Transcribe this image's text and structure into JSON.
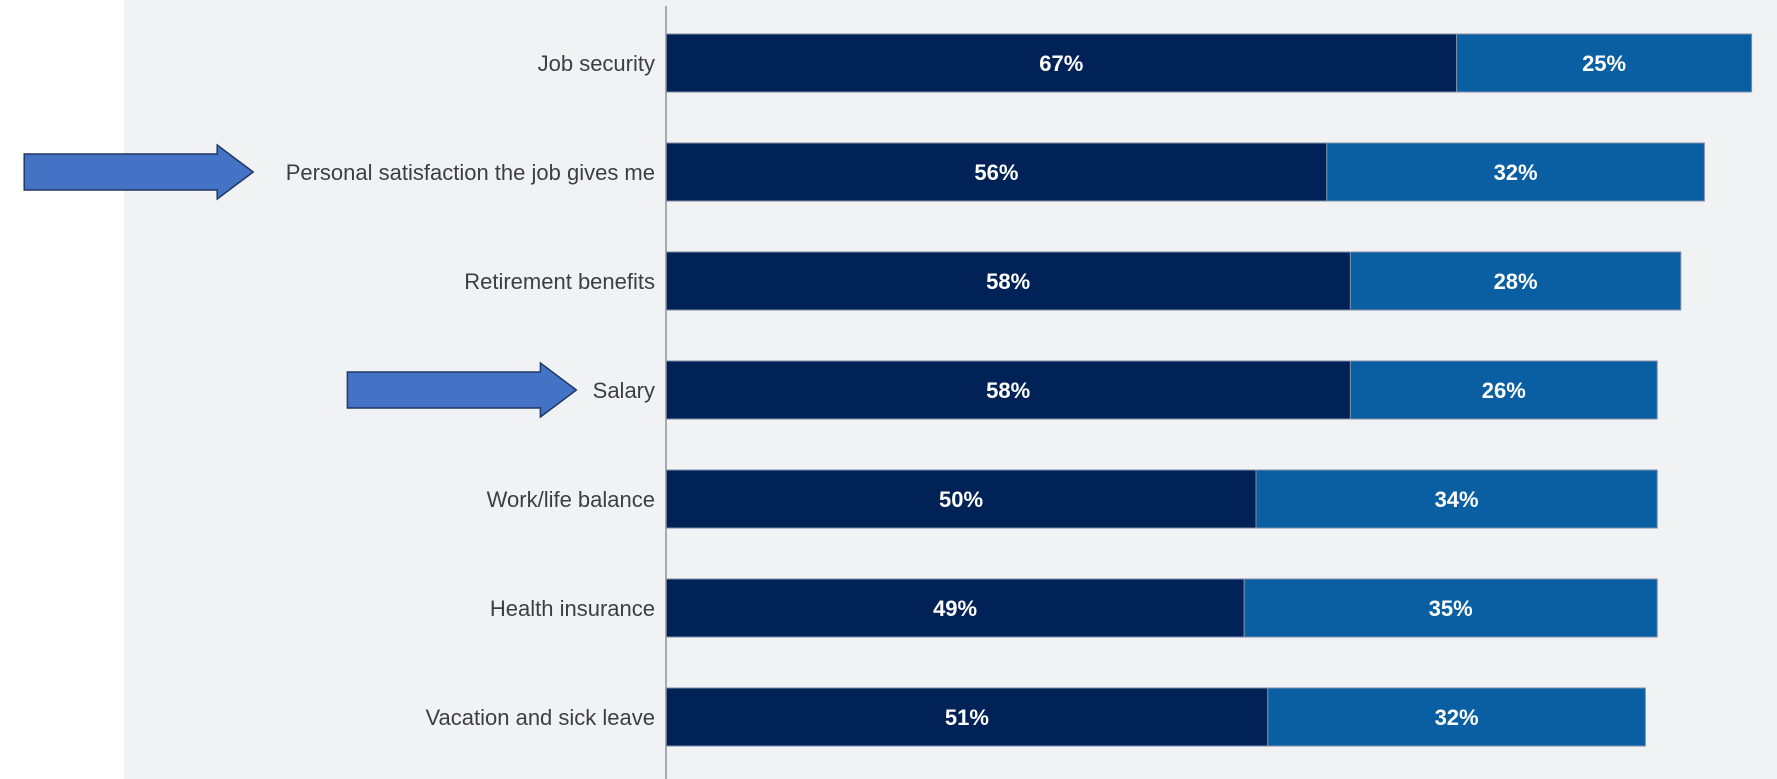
{
  "chart_data": {
    "type": "bar",
    "orientation": "horizontal",
    "stacked": true,
    "categories": [
      "Job security",
      "Personal satisfaction the job gives me",
      "Retirement benefits",
      "Salary",
      "Work/life balance",
      "Health insurance",
      "Vacation and sick leave"
    ],
    "series": [
      {
        "values": [
          67,
          56,
          58,
          58,
          50,
          49,
          51
        ],
        "labels": [
          "67%",
          "56%",
          "58%",
          "58%",
          "50%",
          "49%",
          "51%"
        ],
        "color": "#012256"
      },
      {
        "values": [
          25,
          32,
          28,
          26,
          34,
          35,
          32
        ],
        "labels": [
          "25%",
          "32%",
          "28%",
          "26%",
          "34%",
          "35%",
          "32%"
        ],
        "color": "#0a5fa3"
      }
    ],
    "xlim": [
      0,
      94
    ],
    "grid": false,
    "legend": "none",
    "highlighted_categories": [
      "Personal satisfaction the job gives me",
      "Salary"
    ],
    "highlight_marker": "right-arrow",
    "highlight_color": "#4472c4"
  }
}
